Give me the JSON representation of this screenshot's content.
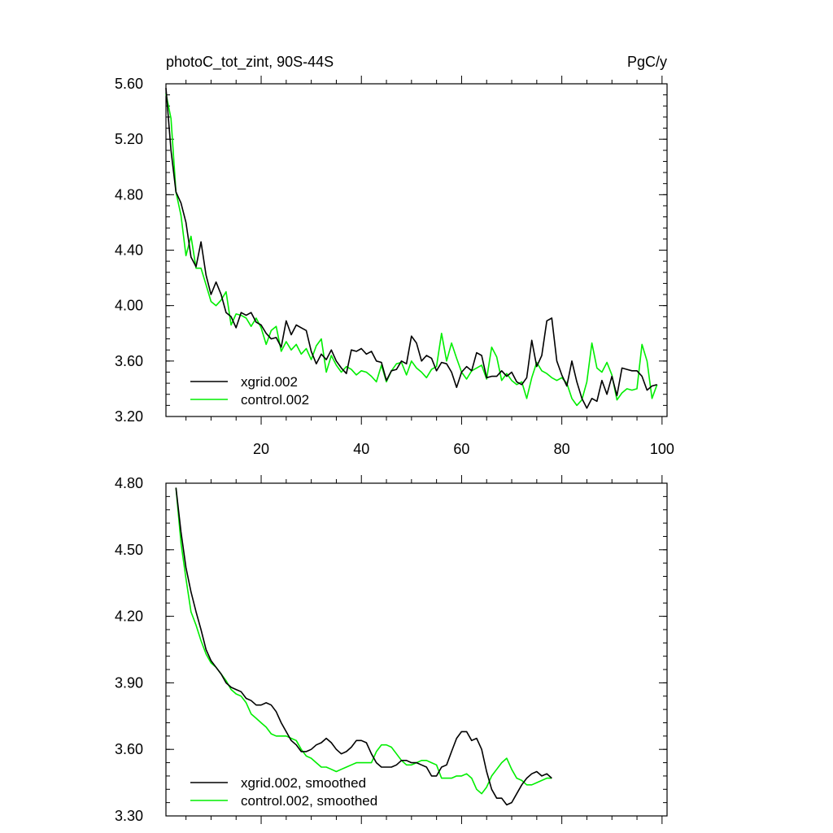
{
  "header": {
    "title_left": "photoC_tot_zint, 90S-44S",
    "title_right": "PgC/y"
  },
  "colors": {
    "xgrid": "#000000",
    "control": "#00ee00"
  },
  "chart_data": [
    {
      "type": "line",
      "title": "photoC_tot_zint, 90S-44S",
      "units": "PgC/y",
      "xlim": [
        1,
        101
      ],
      "ylim": [
        3.2,
        5.6
      ],
      "yticks": [
        "5.60",
        "5.20",
        "4.80",
        "4.40",
        "4.00",
        "3.60",
        "3.20"
      ],
      "xticks": [
        "20",
        "40",
        "60",
        "80",
        "100"
      ],
      "legend_position": "bottom-left",
      "series": [
        {
          "name": "xgrid.002",
          "color": "#000000",
          "x_start": 1,
          "values": [
            5.57,
            5.12,
            4.82,
            4.74,
            4.6,
            4.35,
            4.28,
            4.46,
            4.22,
            4.08,
            4.17,
            4.08,
            3.95,
            3.92,
            3.84,
            3.95,
            3.93,
            3.95,
            3.88,
            3.86,
            3.8,
            3.76,
            3.77,
            3.7,
            3.89,
            3.79,
            3.86,
            3.84,
            3.82,
            3.67,
            3.58,
            3.65,
            3.61,
            3.68,
            3.6,
            3.55,
            3.51,
            3.68,
            3.67,
            3.69,
            3.65,
            3.67,
            3.6,
            3.59,
            3.46,
            3.53,
            3.54,
            3.6,
            3.58,
            3.78,
            3.73,
            3.6,
            3.64,
            3.62,
            3.53,
            3.59,
            3.58,
            3.52,
            3.41,
            3.52,
            3.56,
            3.53,
            3.66,
            3.64,
            3.48,
            3.49,
            3.49,
            3.53,
            3.49,
            3.52,
            3.45,
            3.43,
            3.48,
            3.75,
            3.56,
            3.64,
            3.89,
            3.91,
            3.6,
            3.5,
            3.42,
            3.6,
            3.45,
            3.33,
            3.26,
            3.33,
            3.31,
            3.46,
            3.36,
            3.49,
            3.35,
            3.55,
            3.54,
            3.53,
            3.53,
            3.49,
            3.39,
            3.42,
            3.43
          ]
        },
        {
          "name": "control.002",
          "color": "#00ee00",
          "x_start": 1,
          "values": [
            5.53,
            5.35,
            4.82,
            4.65,
            4.36,
            4.5,
            4.27,
            4.27,
            4.15,
            4.03,
            4.0,
            4.04,
            4.1,
            3.86,
            3.94,
            3.93,
            3.91,
            3.85,
            3.91,
            3.84,
            3.72,
            3.82,
            3.85,
            3.67,
            3.74,
            3.68,
            3.72,
            3.65,
            3.69,
            3.61,
            3.71,
            3.76,
            3.52,
            3.64,
            3.57,
            3.52,
            3.56,
            3.54,
            3.5,
            3.53,
            3.52,
            3.49,
            3.45,
            3.57,
            3.45,
            3.53,
            3.58,
            3.59,
            3.5,
            3.6,
            3.55,
            3.52,
            3.48,
            3.54,
            3.56,
            3.8,
            3.6,
            3.73,
            3.62,
            3.52,
            3.47,
            3.53,
            3.55,
            3.57,
            3.47,
            3.7,
            3.63,
            3.46,
            3.51,
            3.46,
            3.43,
            3.45,
            3.33,
            3.48,
            3.59,
            3.53,
            3.51,
            3.48,
            3.46,
            3.48,
            3.44,
            3.33,
            3.28,
            3.32,
            3.45,
            3.73,
            3.55,
            3.52,
            3.59,
            3.5,
            3.32,
            3.37,
            3.4,
            3.39,
            3.4,
            3.72,
            3.6,
            3.33,
            3.43
          ]
        }
      ]
    },
    {
      "type": "line",
      "xlim": [
        1,
        101
      ],
      "ylim": [
        3.3,
        4.8
      ],
      "yticks": [
        "4.80",
        "4.50",
        "4.20",
        "3.90",
        "3.60",
        "3.30"
      ],
      "legend_position": "bottom-left",
      "series": [
        {
          "name": "xgrid.002, smoothed",
          "color": "#000000",
          "x_start": 3,
          "values": [
            4.78,
            4.58,
            4.42,
            4.31,
            4.22,
            4.14,
            4.05,
            4.0,
            3.97,
            3.94,
            3.9,
            3.88,
            3.87,
            3.86,
            3.83,
            3.82,
            3.8,
            3.8,
            3.81,
            3.8,
            3.77,
            3.72,
            3.68,
            3.64,
            3.62,
            3.59,
            3.59,
            3.6,
            3.62,
            3.63,
            3.65,
            3.63,
            3.6,
            3.58,
            3.59,
            3.61,
            3.64,
            3.64,
            3.63,
            3.58,
            3.54,
            3.52,
            3.52,
            3.52,
            3.53,
            3.55,
            3.55,
            3.54,
            3.54,
            3.53,
            3.52,
            3.48,
            3.48,
            3.52,
            3.53,
            3.59,
            3.65,
            3.68,
            3.68,
            3.64,
            3.65,
            3.6,
            3.5,
            3.42,
            3.38,
            3.38,
            3.35,
            3.36,
            3.4,
            3.44,
            3.47,
            3.49,
            3.5,
            3.48,
            3.49,
            3.47
          ]
        },
        {
          "name": "control.002, smoothed",
          "color": "#00ee00",
          "x_start": 3,
          "values": [
            4.78,
            4.53,
            4.37,
            4.22,
            4.16,
            4.09,
            4.03,
            3.99,
            3.97,
            3.94,
            3.91,
            3.87,
            3.85,
            3.84,
            3.81,
            3.76,
            3.74,
            3.72,
            3.7,
            3.67,
            3.66,
            3.66,
            3.66,
            3.65,
            3.64,
            3.6,
            3.57,
            3.56,
            3.54,
            3.52,
            3.52,
            3.51,
            3.5,
            3.51,
            3.52,
            3.53,
            3.54,
            3.54,
            3.54,
            3.54,
            3.59,
            3.62,
            3.62,
            3.61,
            3.58,
            3.55,
            3.53,
            3.53,
            3.54,
            3.55,
            3.55,
            3.54,
            3.53,
            3.47,
            3.47,
            3.47,
            3.48,
            3.48,
            3.49,
            3.47,
            3.42,
            3.4,
            3.43,
            3.48,
            3.51,
            3.54,
            3.56,
            3.51,
            3.47,
            3.46,
            3.44,
            3.44,
            3.45,
            3.46,
            3.47,
            3.47
          ]
        }
      ]
    }
  ]
}
